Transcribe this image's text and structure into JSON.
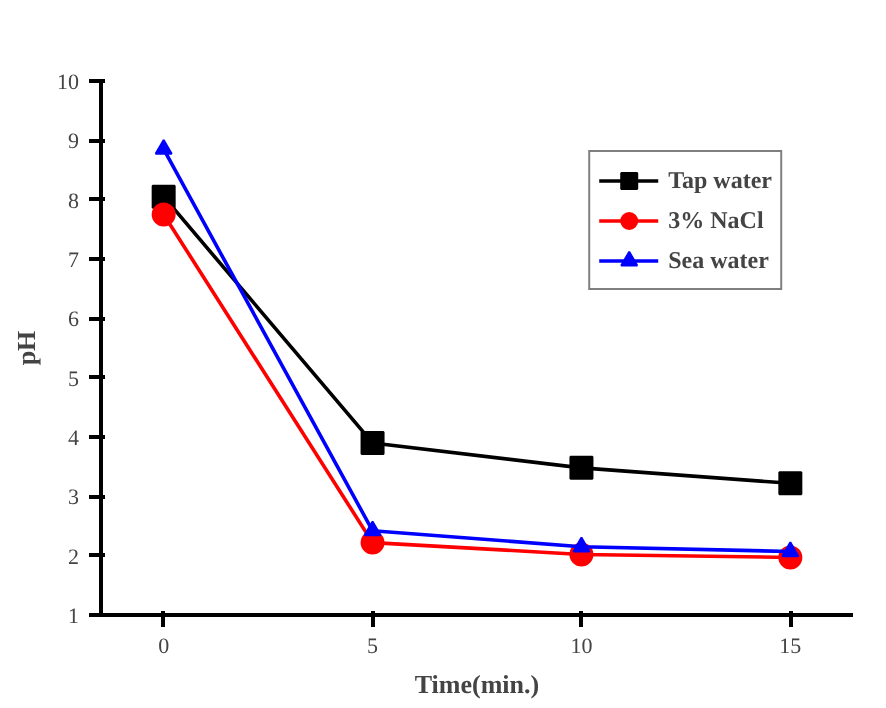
{
  "chart_data": {
    "type": "line",
    "xlabel": "Time(min.)",
    "ylabel": "pH",
    "x": [
      0,
      5,
      10,
      15
    ],
    "series": [
      {
        "name": "Tap water",
        "color": "#000000",
        "values": [
          8.05,
          3.9,
          3.48,
          3.22
        ],
        "marker": "square"
      },
      {
        "name": "3% NaCl",
        "color": "#ff0000",
        "values": [
          7.75,
          2.22,
          2.02,
          1.97
        ],
        "marker": "circle"
      },
      {
        "name": "Sea water",
        "color": "#0000ff",
        "values": [
          8.85,
          2.42,
          2.15,
          2.07
        ],
        "marker": "triangle"
      }
    ],
    "xlim": [
      -1.5,
      16.5
    ],
    "ylim": [
      1,
      10
    ],
    "xticks": [
      0,
      5,
      10,
      15
    ],
    "yticks": [
      1,
      2,
      3,
      4,
      5,
      6,
      7,
      8,
      9,
      10
    ],
    "grid": false,
    "legend": "top right",
    "line_style": "solid"
  }
}
